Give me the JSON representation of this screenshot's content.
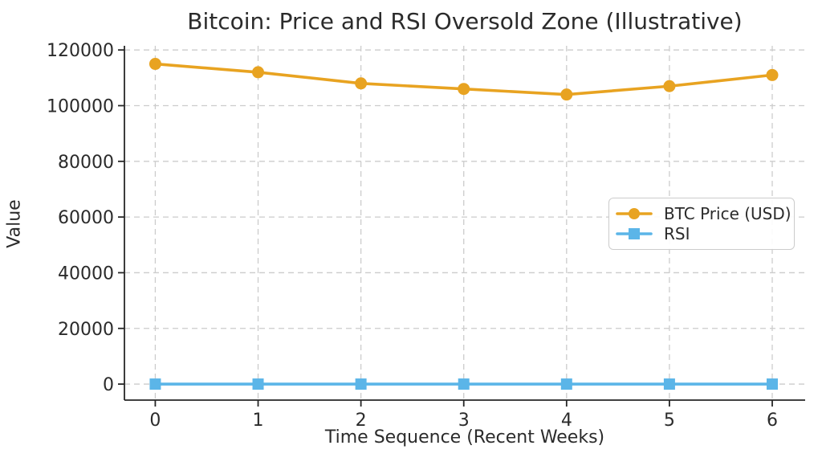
{
  "chart_data": {
    "type": "line",
    "title": "Bitcoin: Price and RSI Oversold Zone (Illustrative)",
    "xlabel": "Time Sequence (Recent Weeks)",
    "ylabel": "Value",
    "x": [
      0,
      1,
      2,
      3,
      4,
      5,
      6
    ],
    "xtick_labels": [
      "0",
      "1",
      "2",
      "3",
      "4",
      "5",
      "6"
    ],
    "ytick_values": [
      0,
      20000,
      40000,
      60000,
      80000,
      100000,
      120000
    ],
    "ytick_labels": [
      "0",
      "20000",
      "40000",
      "60000",
      "80000",
      "100000",
      "120000"
    ],
    "xlim": [
      -0.3,
      6.32
    ],
    "ylim": [
      -5750,
      121500
    ],
    "grid": true,
    "grid_style": "dashed",
    "grid_color": "#cccccc",
    "spine_color": "#262626",
    "legend": {
      "position": "center-right",
      "entries": [
        "BTC Price (USD)",
        "RSI"
      ]
    },
    "series": [
      {
        "name": "BTC Price (USD)",
        "color": "#E8A321",
        "marker": "circle",
        "values": [
          115000,
          112000,
          108000,
          106000,
          104000,
          107000,
          111000
        ]
      },
      {
        "name": "RSI",
        "color": "#5BB5E8",
        "marker": "square",
        "values": [
          0,
          0,
          0,
          0,
          0,
          0,
          0
        ],
        "render_note": "flat line indistinguishable from 0 at this axis scale"
      }
    ]
  }
}
